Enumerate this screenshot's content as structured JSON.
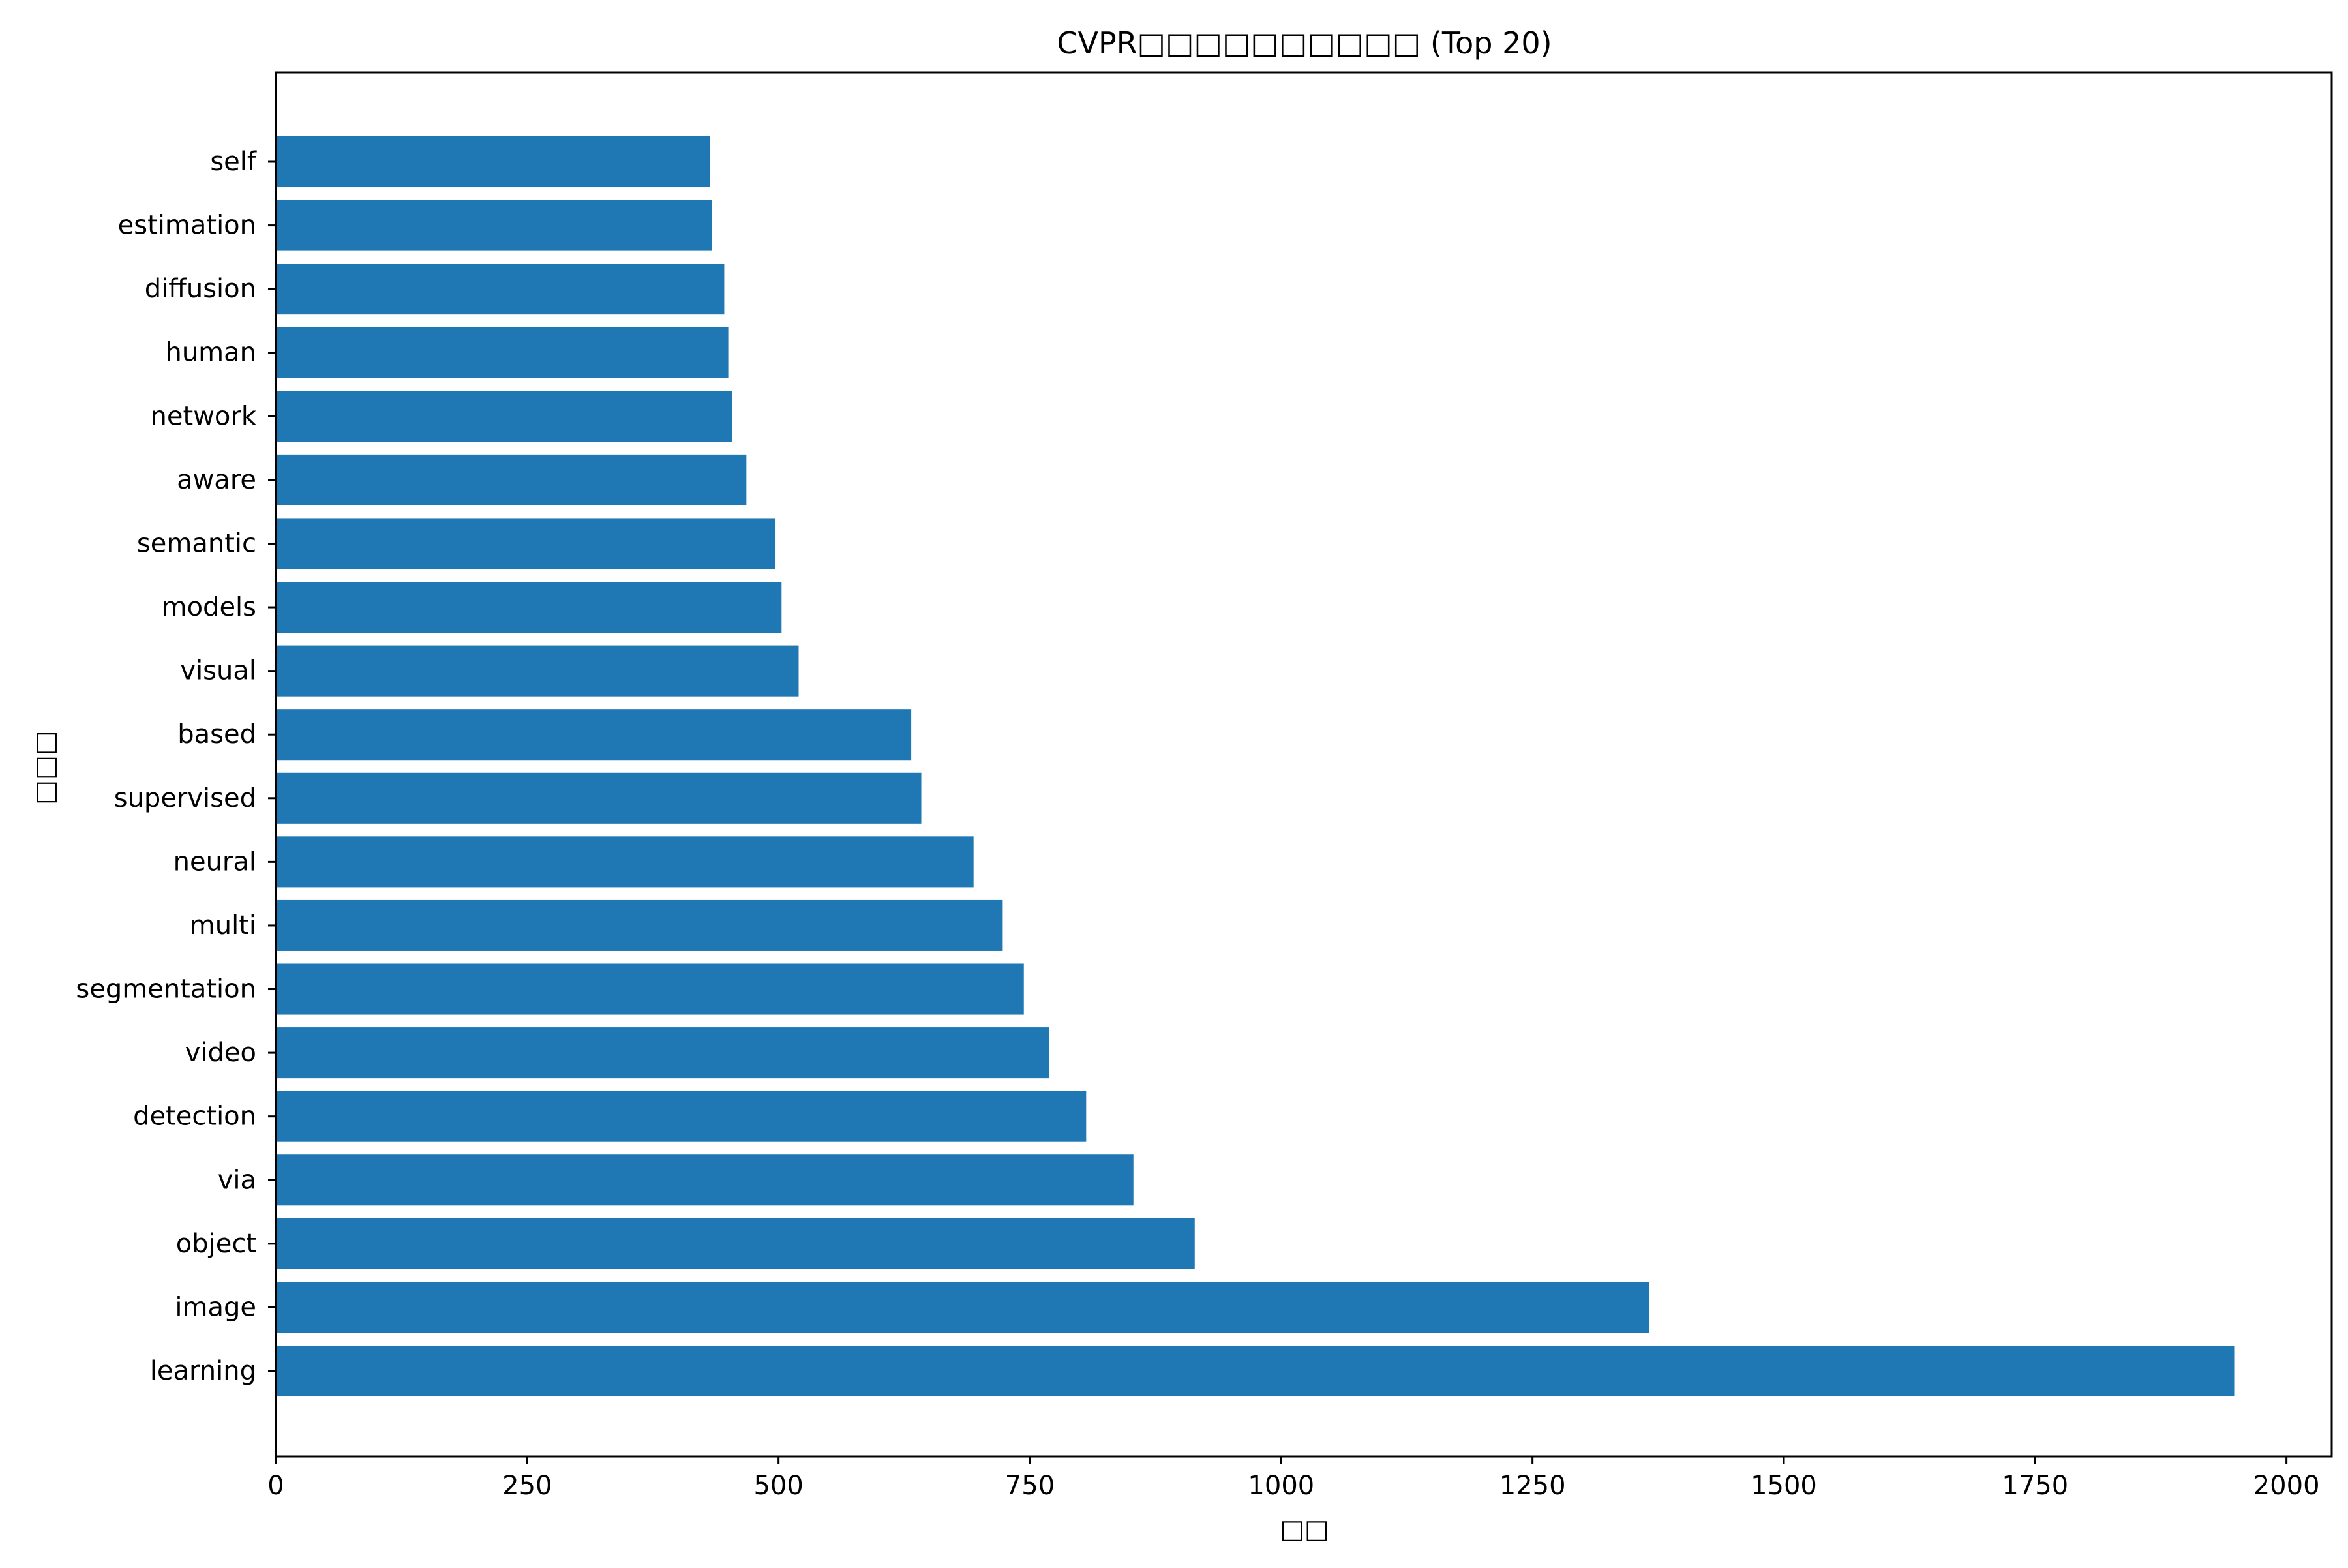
{
  "chart_data": {
    "type": "bar",
    "orientation": "horizontal",
    "title": "CVPR□□□□□□□□□□ (Top 20)",
    "xlabel": "□□",
    "ylabel": "□□□",
    "categories": [
      "learning",
      "image",
      "object",
      "via",
      "detection",
      "video",
      "segmentation",
      "multi",
      "neural",
      "supervised",
      "based",
      "visual",
      "models",
      "semantic",
      "aware",
      "network",
      "human",
      "diffusion",
      "estimation",
      "self"
    ],
    "values": [
      1948,
      1366,
      914,
      853,
      806,
      769,
      744,
      723,
      694,
      642,
      632,
      520,
      503,
      497,
      468,
      454,
      450,
      446,
      434,
      432
    ],
    "xlim": [
      0,
      2045
    ],
    "xticks": [
      0,
      250,
      500,
      750,
      1000,
      1250,
      1500,
      1750,
      2000
    ],
    "grid": false,
    "legend": "none",
    "bar_color": "#1f77b4"
  }
}
